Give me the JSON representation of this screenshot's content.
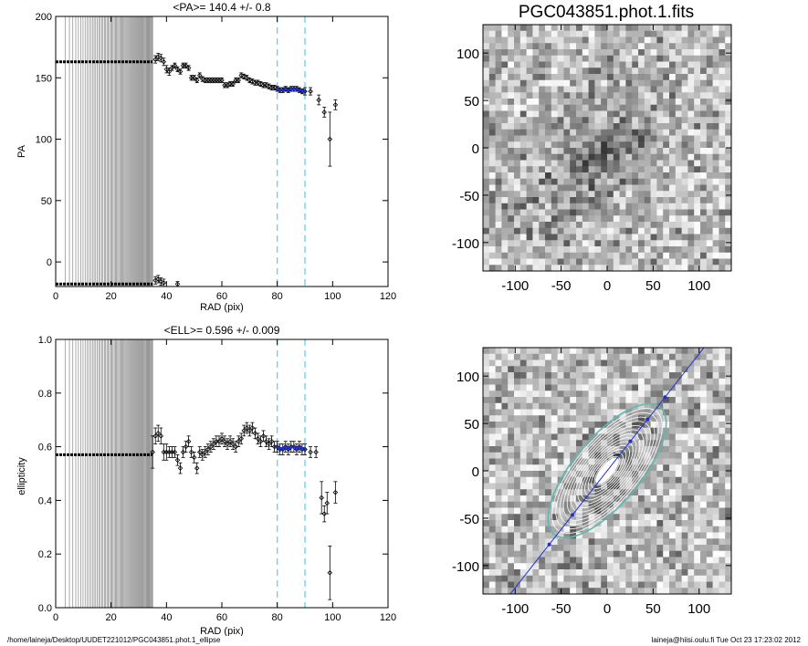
{
  "footer": {
    "left": "/home/laineja/Desktop/UUDET221012/PGC043851.phot.1_ellipse",
    "right": "laineja@hiisi.oulu.fi  Tue Oct 23 17:23:02 2012"
  },
  "colors": {
    "fit_line": "#1f2fd0",
    "dashed_line": "#5fd3e8",
    "axes": "#000000",
    "points": "#000000"
  },
  "chart_data": [
    {
      "id": "pa-profile",
      "type": "scatter",
      "title": "<PA>= 140.4 +/-   0.8",
      "xlabel": "RAD (pix)",
      "ylabel": "PA",
      "xlim": [
        0,
        120
      ],
      "ylim": [
        -20,
        200
      ],
      "xticks": [
        0,
        20,
        40,
        60,
        80,
        100,
        120
      ],
      "yticks": [
        0,
        50,
        100,
        150,
        200
      ],
      "dense_band_x": [
        0,
        35
      ],
      "band_levels": [
        163,
        -18
      ],
      "dashed_vlines": [
        80,
        90
      ],
      "points": [
        {
          "x": 36,
          "y": 165,
          "e": 3
        },
        {
          "x": 37,
          "y": 167,
          "e": 3
        },
        {
          "x": 38,
          "y": 166,
          "e": 3
        },
        {
          "x": 39,
          "y": 163,
          "e": 3
        },
        {
          "x": 40,
          "y": 157,
          "e": 3
        },
        {
          "x": 41,
          "y": 155,
          "e": 3
        },
        {
          "x": 42,
          "y": 158,
          "e": 2
        },
        {
          "x": 43,
          "y": 160,
          "e": 2
        },
        {
          "x": 44,
          "y": 157,
          "e": 2
        },
        {
          "x": 45,
          "y": 155,
          "e": 2
        },
        {
          "x": 46,
          "y": 160,
          "e": 2
        },
        {
          "x": 47,
          "y": 160,
          "e": 2
        },
        {
          "x": 48,
          "y": 158,
          "e": 2
        },
        {
          "x": 49,
          "y": 150,
          "e": 2
        },
        {
          "x": 50,
          "y": 150,
          "e": 2
        },
        {
          "x": 51,
          "y": 148,
          "e": 2
        },
        {
          "x": 52,
          "y": 152,
          "e": 2
        },
        {
          "x": 53,
          "y": 149,
          "e": 2
        },
        {
          "x": 54,
          "y": 148,
          "e": 2
        },
        {
          "x": 55,
          "y": 148,
          "e": 2
        },
        {
          "x": 56,
          "y": 148,
          "e": 2
        },
        {
          "x": 57,
          "y": 148,
          "e": 2
        },
        {
          "x": 58,
          "y": 148,
          "e": 2
        },
        {
          "x": 59,
          "y": 148,
          "e": 2
        },
        {
          "x": 60,
          "y": 148,
          "e": 2
        },
        {
          "x": 61,
          "y": 144,
          "e": 2
        },
        {
          "x": 62,
          "y": 144,
          "e": 2
        },
        {
          "x": 63,
          "y": 145,
          "e": 2
        },
        {
          "x": 64,
          "y": 145,
          "e": 2
        },
        {
          "x": 65,
          "y": 148,
          "e": 2
        },
        {
          "x": 66,
          "y": 148,
          "e": 2
        },
        {
          "x": 67,
          "y": 152,
          "e": 2
        },
        {
          "x": 68,
          "y": 151,
          "e": 2
        },
        {
          "x": 69,
          "y": 150,
          "e": 2
        },
        {
          "x": 70,
          "y": 148,
          "e": 2
        },
        {
          "x": 71,
          "y": 147,
          "e": 2
        },
        {
          "x": 72,
          "y": 146,
          "e": 2
        },
        {
          "x": 73,
          "y": 146,
          "e": 2
        },
        {
          "x": 74,
          "y": 145,
          "e": 2
        },
        {
          "x": 75,
          "y": 144,
          "e": 2
        },
        {
          "x": 76,
          "y": 144,
          "e": 2
        },
        {
          "x": 77,
          "y": 143,
          "e": 2
        },
        {
          "x": 78,
          "y": 142,
          "e": 2
        },
        {
          "x": 79,
          "y": 142,
          "e": 2
        },
        {
          "x": 80,
          "y": 141,
          "e": 2
        },
        {
          "x": 81,
          "y": 140,
          "e": 2
        },
        {
          "x": 82,
          "y": 140,
          "e": 2
        },
        {
          "x": 83,
          "y": 141,
          "e": 2
        },
        {
          "x": 84,
          "y": 140,
          "e": 2
        },
        {
          "x": 85,
          "y": 141,
          "e": 2
        },
        {
          "x": 86,
          "y": 141,
          "e": 2
        },
        {
          "x": 87,
          "y": 141,
          "e": 2
        },
        {
          "x": 88,
          "y": 140,
          "e": 2
        },
        {
          "x": 89,
          "y": 139,
          "e": 2
        },
        {
          "x": 90,
          "y": 139,
          "e": 3
        },
        {
          "x": 92,
          "y": 139,
          "e": 3
        },
        {
          "x": 95,
          "y": 132,
          "e": 4
        },
        {
          "x": 97,
          "y": 122,
          "e": 4
        },
        {
          "x": 99,
          "y": 100,
          "e": 22
        },
        {
          "x": 101,
          "y": 128,
          "e": 4
        },
        {
          "x": 36,
          "y": -15,
          "e": 3
        },
        {
          "x": 37,
          "y": -14,
          "e": 3
        },
        {
          "x": 38,
          "y": -16,
          "e": 3
        },
        {
          "x": 39,
          "y": -17,
          "e": 3
        },
        {
          "x": 44,
          "y": -18,
          "e": 2
        }
      ],
      "fit": {
        "x_start": 80,
        "x_end": 90,
        "value": 140.4
      }
    },
    {
      "id": "ell-profile",
      "type": "scatter",
      "title": "<ELL>= 0.596 +/-  0.009",
      "xlabel": "RAD (pix)",
      "ylabel": "ellipticity",
      "xlim": [
        0,
        120
      ],
      "ylim": [
        0,
        1
      ],
      "xticks": [
        0,
        20,
        40,
        60,
        80,
        100,
        120
      ],
      "yticks": [
        0.0,
        0.2,
        0.4,
        0.6,
        0.8,
        1.0
      ],
      "dense_band_x": [
        0,
        35
      ],
      "band_levels": [
        0.57
      ],
      "dashed_vlines": [
        80,
        90
      ],
      "points": [
        {
          "x": 35,
          "y": 0.58,
          "e": 0.06
        },
        {
          "x": 36,
          "y": 0.64,
          "e": 0.03
        },
        {
          "x": 37,
          "y": 0.65,
          "e": 0.03
        },
        {
          "x": 38,
          "y": 0.64,
          "e": 0.03
        },
        {
          "x": 39,
          "y": 0.58,
          "e": 0.03
        },
        {
          "x": 40,
          "y": 0.58,
          "e": 0.03
        },
        {
          "x": 41,
          "y": 0.58,
          "e": 0.02
        },
        {
          "x": 42,
          "y": 0.58,
          "e": 0.02
        },
        {
          "x": 43,
          "y": 0.58,
          "e": 0.02
        },
        {
          "x": 44,
          "y": 0.55,
          "e": 0.02
        },
        {
          "x": 45,
          "y": 0.52,
          "e": 0.02
        },
        {
          "x": 46,
          "y": 0.58,
          "e": 0.02
        },
        {
          "x": 47,
          "y": 0.6,
          "e": 0.02
        },
        {
          "x": 48,
          "y": 0.62,
          "e": 0.02
        },
        {
          "x": 49,
          "y": 0.58,
          "e": 0.02
        },
        {
          "x": 50,
          "y": 0.56,
          "e": 0.02
        },
        {
          "x": 51,
          "y": 0.52,
          "e": 0.02
        },
        {
          "x": 52,
          "y": 0.58,
          "e": 0.02
        },
        {
          "x": 53,
          "y": 0.57,
          "e": 0.02
        },
        {
          "x": 54,
          "y": 0.58,
          "e": 0.02
        },
        {
          "x": 55,
          "y": 0.59,
          "e": 0.02
        },
        {
          "x": 56,
          "y": 0.6,
          "e": 0.02
        },
        {
          "x": 57,
          "y": 0.61,
          "e": 0.02
        },
        {
          "x": 58,
          "y": 0.62,
          "e": 0.02
        },
        {
          "x": 59,
          "y": 0.62,
          "e": 0.02
        },
        {
          "x": 60,
          "y": 0.63,
          "e": 0.02
        },
        {
          "x": 61,
          "y": 0.62,
          "e": 0.02
        },
        {
          "x": 62,
          "y": 0.61,
          "e": 0.02
        },
        {
          "x": 63,
          "y": 0.62,
          "e": 0.02
        },
        {
          "x": 64,
          "y": 0.61,
          "e": 0.02
        },
        {
          "x": 65,
          "y": 0.6,
          "e": 0.02
        },
        {
          "x": 66,
          "y": 0.62,
          "e": 0.02
        },
        {
          "x": 67,
          "y": 0.63,
          "e": 0.02
        },
        {
          "x": 68,
          "y": 0.66,
          "e": 0.02
        },
        {
          "x": 69,
          "y": 0.67,
          "e": 0.02
        },
        {
          "x": 70,
          "y": 0.66,
          "e": 0.02
        },
        {
          "x": 71,
          "y": 0.67,
          "e": 0.02
        },
        {
          "x": 72,
          "y": 0.65,
          "e": 0.02
        },
        {
          "x": 73,
          "y": 0.63,
          "e": 0.02
        },
        {
          "x": 74,
          "y": 0.62,
          "e": 0.02
        },
        {
          "x": 75,
          "y": 0.64,
          "e": 0.02
        },
        {
          "x": 76,
          "y": 0.62,
          "e": 0.02
        },
        {
          "x": 77,
          "y": 0.61,
          "e": 0.02
        },
        {
          "x": 78,
          "y": 0.62,
          "e": 0.02
        },
        {
          "x": 79,
          "y": 0.6,
          "e": 0.02
        },
        {
          "x": 80,
          "y": 0.6,
          "e": 0.02
        },
        {
          "x": 81,
          "y": 0.59,
          "e": 0.02
        },
        {
          "x": 82,
          "y": 0.59,
          "e": 0.02
        },
        {
          "x": 83,
          "y": 0.6,
          "e": 0.02
        },
        {
          "x": 84,
          "y": 0.59,
          "e": 0.02
        },
        {
          "x": 85,
          "y": 0.6,
          "e": 0.02
        },
        {
          "x": 86,
          "y": 0.6,
          "e": 0.02
        },
        {
          "x": 87,
          "y": 0.59,
          "e": 0.02
        },
        {
          "x": 88,
          "y": 0.6,
          "e": 0.02
        },
        {
          "x": 89,
          "y": 0.59,
          "e": 0.02
        },
        {
          "x": 90,
          "y": 0.59,
          "e": 0.02
        },
        {
          "x": 92,
          "y": 0.58,
          "e": 0.02
        },
        {
          "x": 94,
          "y": 0.58,
          "e": 0.02
        },
        {
          "x": 96,
          "y": 0.41,
          "e": 0.06
        },
        {
          "x": 97,
          "y": 0.35,
          "e": 0.03
        },
        {
          "x": 98,
          "y": 0.39,
          "e": 0.04
        },
        {
          "x": 99,
          "y": 0.13,
          "e": 0.1
        },
        {
          "x": 101,
          "y": 0.43,
          "e": 0.04
        }
      ],
      "fit": {
        "x_start": 80,
        "x_end": 90,
        "value": 0.596
      }
    },
    {
      "id": "image-panel",
      "type": "heatmap",
      "title": "PGC043851.phot.1.fits",
      "xlim": [
        -135,
        135
      ],
      "ylim": [
        -130,
        130
      ],
      "xticks": [
        -100,
        -50,
        0,
        50,
        100
      ],
      "yticks": [
        -100,
        -50,
        0,
        50,
        100
      ],
      "colormap": "inverted-greyscale",
      "galaxy": {
        "center": [
          -15,
          -10
        ],
        "pa_deg": 140,
        "ell": 0.55
      }
    },
    {
      "id": "isophote-panel",
      "type": "heatmap",
      "title": "",
      "xlim": [
        -135,
        135
      ],
      "ylim": [
        -130,
        130
      ],
      "xticks": [
        -100,
        -50,
        0,
        50,
        100
      ],
      "yticks": [
        -100,
        -50,
        0,
        50,
        100
      ],
      "colormap": "inverted-greyscale",
      "isophotes": {
        "pa_deg": 140,
        "ell": 0.596,
        "outer_sma": 90,
        "count": 18
      },
      "pa_line": {
        "angle_deg": 51,
        "color": "blue"
      }
    }
  ]
}
